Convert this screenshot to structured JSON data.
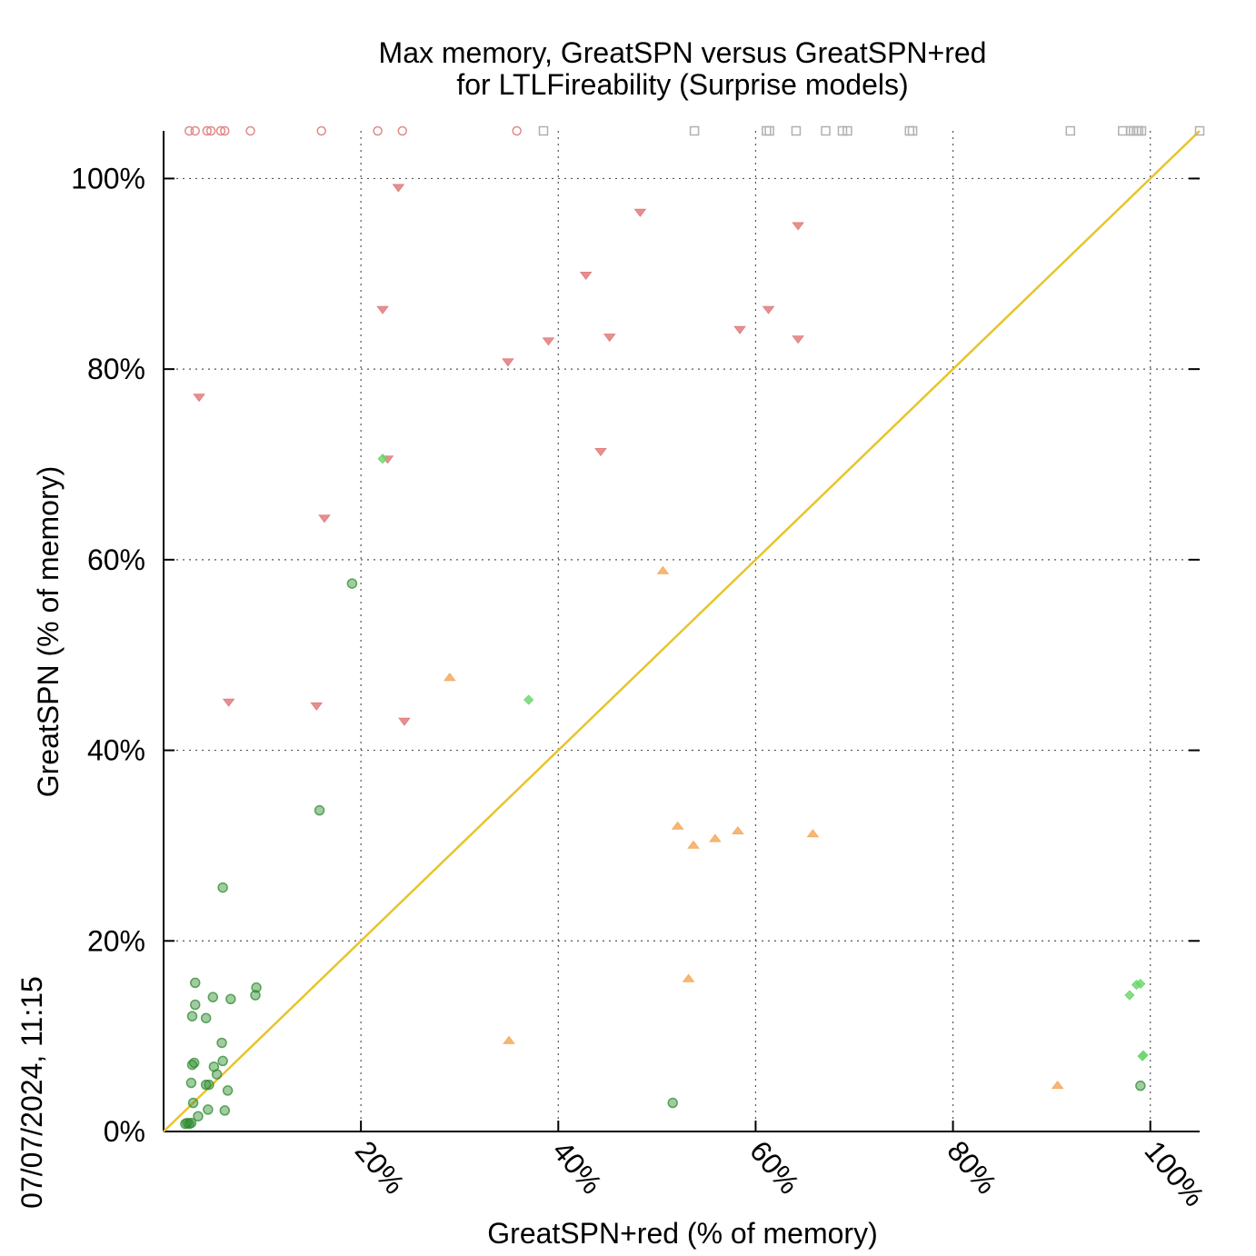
{
  "chart_data": {
    "type": "scatter",
    "title": [
      "Max memory, GreatSPN versus GreatSPN+red",
      "for LTLFireability (Surprise models)"
    ],
    "xlabel": "GreatSPN+red (% of memory)",
    "ylabel": "GreatSPN (% of memory)",
    "timestamp": "07/07/2024, 11:15",
    "xlim": [
      0,
      105
    ],
    "ylim": [
      0,
      105
    ],
    "x_ticks": [
      20,
      40,
      60,
      80,
      100
    ],
    "x_tick_labels": [
      "20%",
      "40%",
      "60%",
      "80%",
      "100%"
    ],
    "y_ticks": [
      0,
      20,
      40,
      60,
      80,
      100
    ],
    "y_tick_labels": [
      "0%",
      "20%",
      "40%",
      "60%",
      "80%",
      "100%"
    ],
    "grid": true,
    "diagonal": {
      "from": [
        0,
        0
      ],
      "to": [
        105,
        105
      ],
      "color": "#e8c42a"
    },
    "series": [
      {
        "marker": "circle-filled",
        "color": "#2e8b2e",
        "points": [
          [
            2.2,
            0.8
          ],
          [
            2.4,
            0.9
          ],
          [
            2.6,
            0.8
          ],
          [
            2.8,
            0.9
          ],
          [
            3.5,
            1.6
          ],
          [
            4.5,
            2.3
          ],
          [
            6.2,
            2.2
          ],
          [
            3.0,
            3.0
          ],
          [
            2.8,
            5.1
          ],
          [
            4.3,
            4.9
          ],
          [
            4.6,
            4.9
          ],
          [
            6.5,
            4.3
          ],
          [
            5.4,
            6.0
          ],
          [
            2.9,
            7.0
          ],
          [
            3.1,
            7.2
          ],
          [
            5.1,
            6.8
          ],
          [
            6.0,
            7.4
          ],
          [
            5.9,
            9.3
          ],
          [
            2.9,
            12.1
          ],
          [
            4.3,
            11.9
          ],
          [
            3.2,
            13.3
          ],
          [
            5.0,
            14.1
          ],
          [
            6.8,
            13.9
          ],
          [
            3.2,
            15.6
          ],
          [
            9.3,
            14.3
          ],
          [
            9.4,
            15.1
          ],
          [
            6.0,
            25.6
          ],
          [
            15.8,
            33.7
          ],
          [
            19.1,
            57.5
          ],
          [
            51.6,
            3.0
          ],
          [
            99.0,
            4.8
          ]
        ]
      },
      {
        "marker": "triangle-down",
        "color": "#e07b7b",
        "points": [
          [
            3.6,
            77.0
          ],
          [
            6.6,
            45.0
          ],
          [
            15.5,
            44.6
          ],
          [
            16.3,
            64.3
          ],
          [
            22.2,
            86.2
          ],
          [
            22.7,
            70.5
          ],
          [
            23.8,
            99.0
          ],
          [
            24.4,
            43.0
          ],
          [
            34.9,
            80.7
          ],
          [
            39.0,
            82.9
          ],
          [
            42.8,
            89.8
          ],
          [
            44.3,
            71.3
          ],
          [
            45.2,
            83.3
          ],
          [
            48.3,
            96.4
          ],
          [
            58.4,
            84.1
          ],
          [
            61.3,
            86.2
          ],
          [
            64.3,
            83.1
          ],
          [
            64.3,
            95.0
          ]
        ]
      },
      {
        "marker": "triangle-up",
        "color": "#f5a95c",
        "points": [
          [
            29.0,
            47.7
          ],
          [
            35.0,
            9.6
          ],
          [
            50.6,
            58.9
          ],
          [
            52.1,
            32.1
          ],
          [
            53.2,
            16.1
          ],
          [
            53.7,
            30.1
          ],
          [
            55.9,
            30.8
          ],
          [
            58.2,
            31.6
          ],
          [
            65.8,
            31.3
          ],
          [
            90.6,
            4.9
          ]
        ]
      },
      {
        "marker": "diamond",
        "color": "#6ad66a",
        "points": [
          [
            22.2,
            70.6
          ],
          [
            37.0,
            45.3
          ],
          [
            97.9,
            14.3
          ],
          [
            98.6,
            15.4
          ],
          [
            99.0,
            15.5
          ],
          [
            99.2,
            7.9
          ],
          [
            99.3,
            8.0
          ]
        ]
      },
      {
        "marker": "circle-open",
        "color": "#e08a8a",
        "points": [
          [
            2.6,
            105
          ],
          [
            3.2,
            105
          ],
          [
            4.4,
            105
          ],
          [
            4.8,
            105
          ],
          [
            5.8,
            105
          ],
          [
            6.2,
            105
          ],
          [
            8.8,
            105
          ],
          [
            16.0,
            105
          ],
          [
            21.7,
            105
          ],
          [
            24.2,
            105
          ],
          [
            35.8,
            105
          ]
        ]
      },
      {
        "marker": "square-open",
        "color": "#b0b0b0",
        "points": [
          [
            38.5,
            105
          ],
          [
            53.8,
            105
          ],
          [
            61.1,
            105
          ],
          [
            61.4,
            105
          ],
          [
            64.1,
            105
          ],
          [
            67.1,
            105
          ],
          [
            68.8,
            105
          ],
          [
            69.3,
            105
          ],
          [
            75.6,
            105
          ],
          [
            75.9,
            105
          ],
          [
            91.9,
            105
          ],
          [
            97.2,
            105
          ],
          [
            98.0,
            105
          ],
          [
            98.3,
            105
          ],
          [
            98.6,
            105
          ],
          [
            98.8,
            105
          ],
          [
            99.1,
            105
          ],
          [
            105,
            105
          ]
        ]
      }
    ]
  }
}
